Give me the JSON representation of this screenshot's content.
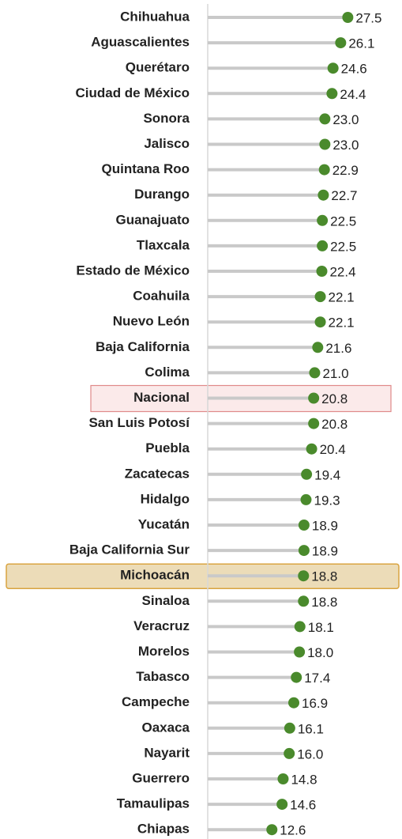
{
  "chart_data": {
    "type": "lollipop",
    "categories": [
      "Chihuahua",
      "Aguascalientes",
      "Querétaro",
      "Ciudad de México",
      "Sonora",
      "Jalisco",
      "Quintana Roo",
      "Durango",
      "Guanajuato",
      "Tlaxcala",
      "Estado de México",
      "Coahuila",
      "Nuevo León",
      "Baja California",
      "Colima",
      "Nacional",
      "San Luis Potosí",
      "Puebla",
      "Zacatecas",
      "Hidalgo",
      "Yucatán",
      "Baja California Sur",
      "Michoacán",
      "Sinaloa",
      "Veracruz",
      "Morelos",
      "Tabasco",
      "Campeche",
      "Oaxaca",
      "Nayarit",
      "Guerrero",
      "Tamaulipas",
      "Chiapas"
    ],
    "values": [
      27.5,
      26.1,
      24.6,
      24.4,
      23.0,
      23.0,
      22.9,
      22.7,
      22.5,
      22.5,
      22.4,
      22.1,
      22.1,
      21.6,
      21.0,
      20.8,
      20.8,
      20.4,
      19.4,
      19.3,
      18.9,
      18.9,
      18.8,
      18.8,
      18.1,
      18.0,
      17.4,
      16.9,
      16.1,
      16.0,
      14.8,
      14.6,
      12.6
    ],
    "value_labels": [
      "27.5",
      "26.1",
      "24.6",
      "24.4",
      "23.0",
      "23.0",
      "22.9",
      "22.7",
      "22.5",
      "22.5",
      "22.4",
      "22.1",
      "22.1",
      "21.6",
      "21.0",
      "20.8",
      "20.8",
      "20.4",
      "19.4",
      "19.3",
      "18.9",
      "18.9",
      "18.8",
      "18.8",
      "18.1",
      "18.0",
      "17.4",
      "16.9",
      "16.1",
      "16.0",
      "14.8",
      "14.6",
      "12.6"
    ],
    "color": "#4a8a2c",
    "stem_color": "#c9c9c9"
  }
}
